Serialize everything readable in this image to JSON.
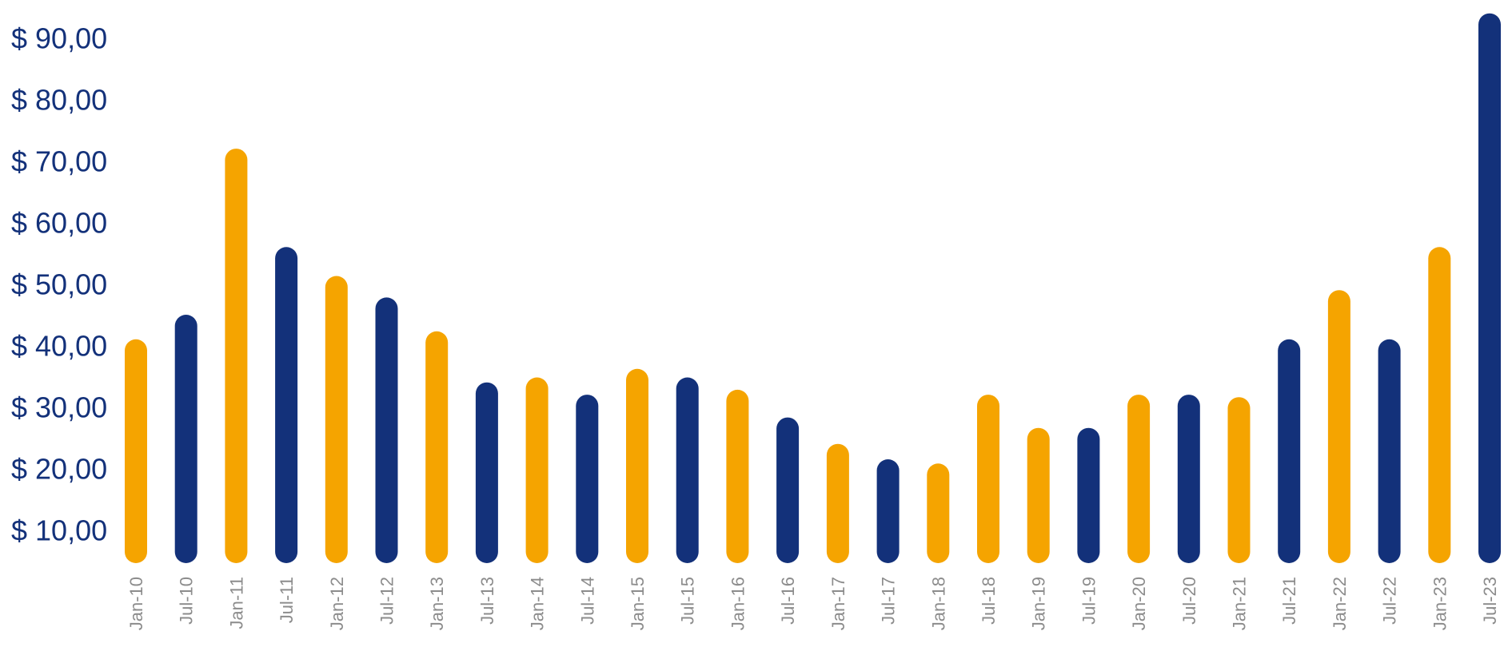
{
  "colors": {
    "navy": "#13317a",
    "gold": "#f5a400",
    "axis_text_y": "#13317a",
    "axis_text_x": "#8c8c8c"
  },
  "chart_data": {
    "type": "bar",
    "categories": [
      "Jan-10",
      "Jul-10",
      "Jan-11",
      "Jul-11",
      "Jan-12",
      "Jul-12",
      "Jan-13",
      "Jul-13",
      "Jan-14",
      "Jul-14",
      "Jan-15",
      "Jul-15",
      "Jan-16",
      "Jul-16",
      "Jan-17",
      "Jul-17",
      "Jan-18",
      "Jul-18",
      "Jan-19",
      "Jul-19",
      "Jan-20",
      "Jul-20",
      "Jan-21",
      "Jul-21",
      "Jan-22",
      "Jul-22",
      "Jan-23",
      "Jul-23"
    ],
    "values": [
      41,
      45,
      72,
      56,
      51.3,
      47.8,
      42.3,
      34,
      34.8,
      32,
      36.2,
      34.8,
      32.8,
      28.3,
      24,
      21.5,
      20.8,
      32,
      26.6,
      26.6,
      32,
      32,
      31.6,
      41,
      49,
      41,
      56,
      94
    ],
    "bar_colors": [
      "gold",
      "navy",
      "gold",
      "navy",
      "gold",
      "navy",
      "gold",
      "navy",
      "gold",
      "navy",
      "gold",
      "navy",
      "gold",
      "navy",
      "gold",
      "navy",
      "gold",
      "gold",
      "gold",
      "navy",
      "gold",
      "navy",
      "gold",
      "navy",
      "gold",
      "navy",
      "gold",
      "navy"
    ],
    "yticks": [
      10,
      20,
      30,
      40,
      50,
      60,
      70,
      80,
      90
    ],
    "ytick_labels": [
      "$ 10,00",
      "$ 20,00",
      "$ 30,00",
      "$ 40,00",
      "$ 50,00",
      "$ 60,00",
      "$ 70,00",
      "$ 80,00",
      "$ 90,00"
    ],
    "ylim": [
      3,
      96
    ],
    "title": "",
    "xlabel": "",
    "ylabel": "",
    "grid": false,
    "legend": "none"
  }
}
